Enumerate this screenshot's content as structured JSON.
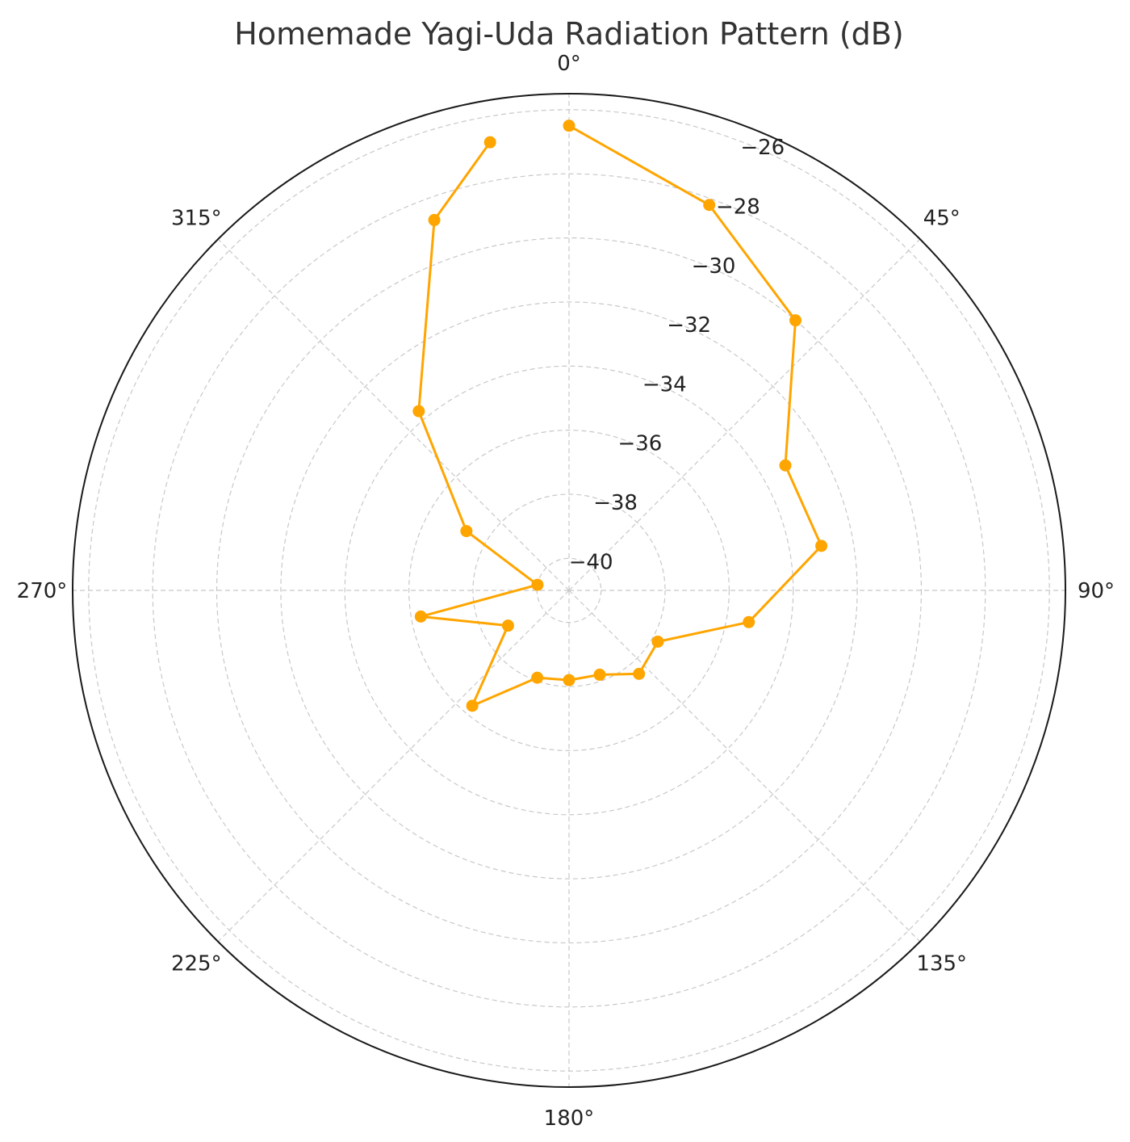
{
  "chart_data": {
    "type": "line",
    "projection": "polar",
    "title": "Homemade Yagi-Uda Radiation Pattern (dB)",
    "theta_zero_location": "N",
    "theta_direction": "clockwise",
    "r_range": [
      -41,
      -25.5
    ],
    "r_ticks": [
      -40,
      -38,
      -36,
      -34,
      -32,
      -30,
      -28,
      -26
    ],
    "r_tick_labels": [
      "−40",
      "−38",
      "−36",
      "−34",
      "−32",
      "−30",
      "−28",
      "−26"
    ],
    "theta_ticks": [
      0,
      45,
      90,
      135,
      180,
      225,
      270,
      315
    ],
    "theta_tick_labels": [
      "0°",
      "45°",
      "90°",
      "135°",
      "180°",
      "225°",
      "270°",
      "315°"
    ],
    "grid": true,
    "line_color": "#FFA500",
    "marker": "circle",
    "series": [
      {
        "theta": [
          0,
          20,
          40,
          60,
          80,
          100,
          120,
          140,
          160,
          180,
          200,
          220,
          240,
          260,
          280,
          300,
          320,
          340,
          350
        ],
        "values": [
          -26.5,
          -28.2,
          -30.0,
          -33.2,
          -33.0,
          -35.3,
          -37.8,
          -37.6,
          -38.2,
          -38.2,
          -38.1,
          -36.3,
          -38.8,
          -36.3,
          -40.0,
          -37.3,
          -33.7,
          -28.7,
          -26.8
        ]
      }
    ]
  }
}
